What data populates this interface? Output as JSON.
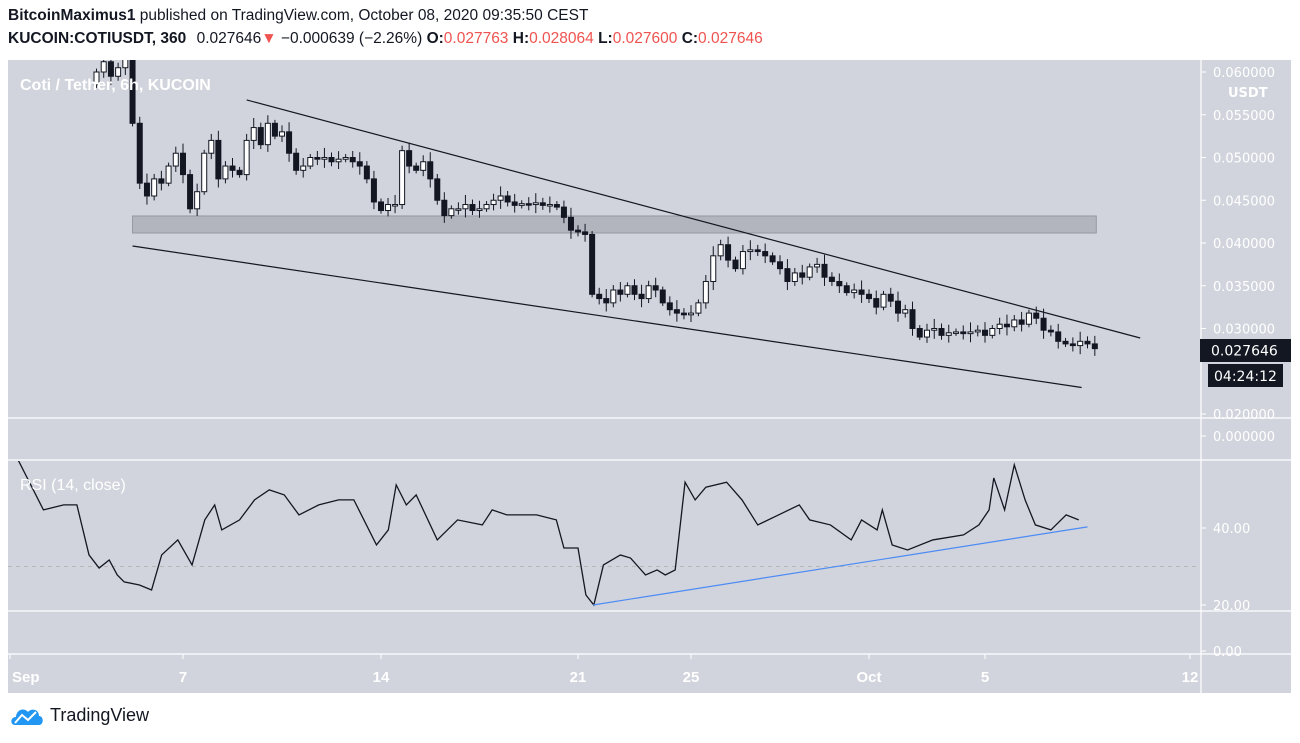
{
  "header": {
    "author": "BitcoinMaximus1",
    "published": "published on TradingView.com, October 08, 2020 09:35:50 CEST",
    "symbol": "KUCOIN:COTIUSDT, 360",
    "last": "0.027646",
    "change": "−0.000639 (−2.26%)",
    "o_label": "O:",
    "o": "0.027763",
    "h_label": "H:",
    "h": "0.028064",
    "l_label": "L:",
    "l": "0.027600",
    "c_label": "C:",
    "c": "0.027646"
  },
  "footer": {
    "brand": "TradingView"
  },
  "colors": {
    "background": "#d1d4dc",
    "bear": "#131722",
    "bull": "#ffffff",
    "rsi_trend": "#4c8bf5",
    "down": "#ef5350"
  },
  "chart_data": [
    {
      "type": "candlestick",
      "title": "Coti / Tether, 6h, KUCOIN",
      "currency": "USDT",
      "ylim": [
        0.02,
        0.06
      ],
      "y_ticks": [
        "0.060000",
        "0.055000",
        "0.050000",
        "0.045000",
        "0.040000",
        "0.035000",
        "0.030000",
        "0.020000"
      ],
      "y_tick_values": [
        0.06,
        0.055,
        0.05,
        0.045,
        0.04,
        0.035,
        0.03,
        0.02
      ],
      "volume_tick": "0.000000",
      "last_price_label": "0.027646",
      "countdown_label": "04:24:12",
      "last_price": 0.027646,
      "x_ticks": [
        "Sep",
        "7",
        "14",
        "21",
        "25",
        "Oct",
        "5",
        "12"
      ],
      "x_tick_days": [
        1,
        7,
        14,
        21,
        25,
        31,
        35,
        42
      ],
      "start_day": 4,
      "interval_days": 0.25,
      "first_open": 0.0585,
      "closes": [
        0.06,
        0.0612,
        0.0595,
        0.0605,
        0.0615,
        0.054,
        0.047,
        0.0455,
        0.0475,
        0.047,
        0.049,
        0.0505,
        0.048,
        0.044,
        0.046,
        0.0505,
        0.052,
        0.0475,
        0.049,
        0.0485,
        0.048,
        0.052,
        0.0535,
        0.0515,
        0.054,
        0.0525,
        0.053,
        0.0505,
        0.0485,
        0.049,
        0.05,
        0.0498,
        0.05,
        0.0495,
        0.0498,
        0.05,
        0.0495,
        0.049,
        0.0475,
        0.0448,
        0.0438,
        0.0445,
        0.0445,
        0.0508,
        0.049,
        0.0485,
        0.0495,
        0.0475,
        0.045,
        0.0432,
        0.044,
        0.044,
        0.0445,
        0.0438,
        0.044,
        0.0445,
        0.045,
        0.0455,
        0.0448,
        0.0444,
        0.0446,
        0.0445,
        0.0447,
        0.0444,
        0.0445,
        0.0442,
        0.043,
        0.0415,
        0.0413,
        0.041,
        0.034,
        0.0335,
        0.033,
        0.0345,
        0.034,
        0.035,
        0.034,
        0.0335,
        0.035,
        0.0345,
        0.033,
        0.0322,
        0.0318,
        0.0316,
        0.0318,
        0.033,
        0.0355,
        0.0385,
        0.0398,
        0.038,
        0.037,
        0.039,
        0.0392,
        0.039,
        0.0385,
        0.0378,
        0.037,
        0.0355,
        0.0365,
        0.036,
        0.0372,
        0.0375,
        0.036,
        0.0355,
        0.035,
        0.0342,
        0.0345,
        0.034,
        0.0335,
        0.0325,
        0.034,
        0.0332,
        0.0318,
        0.0322,
        0.03,
        0.029,
        0.0298,
        0.03,
        0.0292,
        0.0295,
        0.0296,
        0.0294,
        0.0296,
        0.0298,
        0.0292,
        0.03,
        0.0305,
        0.0302,
        0.031,
        0.0305,
        0.0318,
        0.0312,
        0.0298,
        0.0296,
        0.0285,
        0.0282,
        0.028,
        0.0285,
        0.0282,
        0.027646
      ],
      "annotations": {
        "upper_trendline": [
          [
            9.25,
            0.05673
          ],
          [
            40.3,
            0.02889
          ]
        ],
        "lower_trendline": [
          [
            5.25,
            0.03965
          ],
          [
            38.3,
            0.0231
          ]
        ],
        "support_zone": {
          "from_day": 5.25,
          "to_day": 38.8,
          "low": 0.04117,
          "high": 0.04316
        }
      }
    },
    {
      "type": "line",
      "title": "RSI (14, close)",
      "y_ticks": [
        "40.00",
        "20.00",
        "0.00"
      ],
      "y_tick_values": [
        40,
        20,
        0
      ],
      "dashed_level": 30,
      "points": [
        [
          1.28,
          57.7
        ],
        [
          2.16,
          44.7
        ],
        [
          2.86,
          46
        ],
        [
          3.32,
          46
        ],
        [
          3.74,
          33
        ],
        [
          4.09,
          29.6
        ],
        [
          4.44,
          31.7
        ],
        [
          4.72,
          27.8
        ],
        [
          4.96,
          26
        ],
        [
          5.49,
          25.2
        ],
        [
          5.91,
          23.9
        ],
        [
          6.26,
          33
        ],
        [
          6.82,
          36.9
        ],
        [
          7.32,
          30.4
        ],
        [
          7.77,
          42.1
        ],
        [
          8.12,
          46
        ],
        [
          8.37,
          39.5
        ],
        [
          9.0,
          42.1
        ],
        [
          9.53,
          47.3
        ],
        [
          10.05,
          49.9
        ],
        [
          10.58,
          48.6
        ],
        [
          11.1,
          43.4
        ],
        [
          11.8,
          46
        ],
        [
          12.5,
          47.3
        ],
        [
          13.04,
          47.3
        ],
        [
          13.84,
          35.6
        ],
        [
          14.26,
          39.5
        ],
        [
          14.54,
          51.2
        ],
        [
          14.9,
          46
        ],
        [
          15.25,
          48.6
        ],
        [
          16.0,
          36.9
        ],
        [
          16.72,
          42.1
        ],
        [
          17.6,
          40.8
        ],
        [
          17.95,
          44.7
        ],
        [
          18.47,
          43.4
        ],
        [
          19.53,
          43.4
        ],
        [
          20.23,
          42.1
        ],
        [
          20.5,
          34.8
        ],
        [
          21.0,
          34.8
        ],
        [
          21.28,
          22.6
        ],
        [
          21.56,
          20
        ],
        [
          21.9,
          30.4
        ],
        [
          22.5,
          33
        ],
        [
          22.86,
          32.2
        ],
        [
          23.39,
          27.8
        ],
        [
          23.8,
          29.1
        ],
        [
          24.09,
          27.8
        ],
        [
          24.44,
          29.1
        ],
        [
          24.79,
          51.9
        ],
        [
          25.14,
          47.3
        ],
        [
          25.5,
          50.6
        ],
        [
          26.2,
          51.9
        ],
        [
          26.72,
          47.3
        ],
        [
          27.25,
          40.8
        ],
        [
          27.95,
          43.4
        ],
        [
          28.65,
          46
        ],
        [
          29.0,
          42.1
        ],
        [
          29.7,
          40.8
        ],
        [
          30.4,
          36.9
        ],
        [
          30.75,
          42.1
        ],
        [
          31.28,
          39.5
        ],
        [
          31.46,
          44.7
        ],
        [
          31.8,
          35.6
        ],
        [
          32.33,
          34.3
        ],
        [
          33.2,
          36.9
        ],
        [
          34.26,
          38.2
        ],
        [
          34.79,
          40.8
        ],
        [
          35.14,
          44.7
        ],
        [
          35.3,
          53
        ],
        [
          35.67,
          44.7
        ],
        [
          36.0,
          56.4
        ],
        [
          36.37,
          47.3
        ],
        [
          36.72,
          40.8
        ],
        [
          37.25,
          39.5
        ],
        [
          37.77,
          43.4
        ],
        [
          38.2,
          42.1
        ]
      ],
      "trendline": [
        [
          21.53,
          20
        ],
        [
          38.5,
          40.3
        ]
      ]
    }
  ]
}
